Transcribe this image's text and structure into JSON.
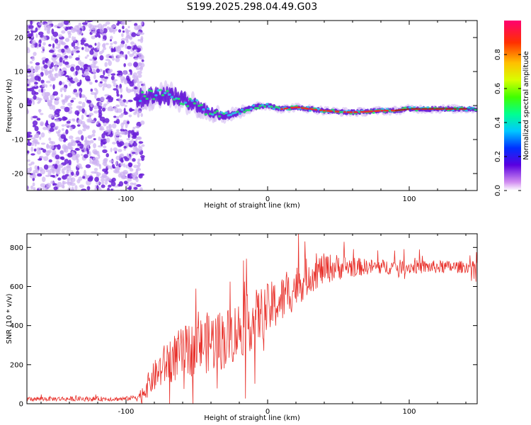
{
  "title": "S199.2025.298.04.49.G03",
  "colors": {
    "snr_line": "#e8312b",
    "axis": "#000000",
    "ridge_core": "#e8312b",
    "ridge_mid": "#22e36a",
    "ridge_outer": "#2cc3e8",
    "scatter_dark": "#6a1fd8",
    "scatter_light": "#cdb2f2"
  },
  "chart_data": [
    {
      "type": "heatmap",
      "name": "spectrogram",
      "xlabel": "Height of straight line (km)",
      "ylabel": "Frequency (Hz)",
      "xlim": [
        -170,
        148
      ],
      "ylim": [
        -25,
        25
      ],
      "xticks": [
        -100,
        0,
        100
      ],
      "xtick_labels": [
        "-100",
        "0",
        "100"
      ],
      "yticks": [
        -20,
        -10,
        0,
        10,
        20
      ],
      "ytick_labels": [
        "-20",
        "-10",
        "0",
        "10",
        "20"
      ],
      "ridge": {
        "x": [
          -92,
          -80,
          -70,
          -60,
          -50,
          -40,
          -30,
          -20,
          -10,
          0,
          10,
          20,
          30,
          40,
          50,
          60,
          70,
          80,
          90,
          100,
          110,
          120,
          130,
          140,
          148
        ],
        "center": [
          2,
          3,
          3,
          2,
          0,
          -2,
          -3,
          -2,
          -0.5,
          0,
          -1,
          -0.5,
          -1,
          -1.5,
          -1.8,
          -2,
          -1.8,
          -1.5,
          -1.5,
          -1,
          -1,
          -1,
          -1,
          -1,
          -1
        ],
        "halfwidth": [
          4,
          4,
          4,
          3.5,
          3,
          2.5,
          2,
          1.5,
          1.2,
          1,
          1,
          1,
          1,
          1,
          1,
          1,
          1,
          1,
          1,
          1,
          1,
          1,
          1,
          1,
          1
        ]
      },
      "colorbar": {
        "label": "Normalized spectral amplitude",
        "ticks": [
          0.0,
          0.2,
          0.4,
          0.6,
          0.8
        ],
        "tick_labels": [
          "0.0",
          "0.2",
          "0.4",
          "0.6",
          "0.8"
        ],
        "range": [
          0,
          1
        ]
      }
    },
    {
      "type": "line",
      "name": "snr",
      "xlabel": "Height of straight line (km)",
      "ylabel": "SNR (10 * v/v)",
      "xlim": [
        -170,
        148
      ],
      "ylim": [
        0,
        870
      ],
      "xticks": [
        -100,
        0,
        100
      ],
      "xtick_labels": [
        "-100",
        "0",
        "100"
      ],
      "yticks": [
        0,
        200,
        400,
        600,
        800
      ],
      "ytick_labels": [
        "0",
        "200",
        "400",
        "600",
        "800"
      ],
      "trend_x": [
        -170,
        -130,
        -100,
        -90,
        -80,
        -70,
        -60,
        -50,
        -40,
        -30,
        -20,
        -10,
        0,
        10,
        20,
        30,
        40,
        50,
        60,
        70,
        80,
        90,
        100,
        110,
        120,
        130,
        148
      ],
      "trend_y": [
        25,
        25,
        25,
        40,
        140,
        220,
        260,
        290,
        320,
        330,
        380,
        430,
        480,
        530,
        600,
        660,
        690,
        700,
        700,
        700,
        700,
        700,
        700,
        700,
        700,
        700,
        700
      ],
      "noise_amp_x": [
        -170,
        -95,
        -85,
        -70,
        -40,
        -10,
        20,
        40,
        70,
        148
      ],
      "noise_amp_y": [
        12,
        12,
        60,
        120,
        160,
        150,
        110,
        80,
        40,
        30
      ]
    }
  ]
}
